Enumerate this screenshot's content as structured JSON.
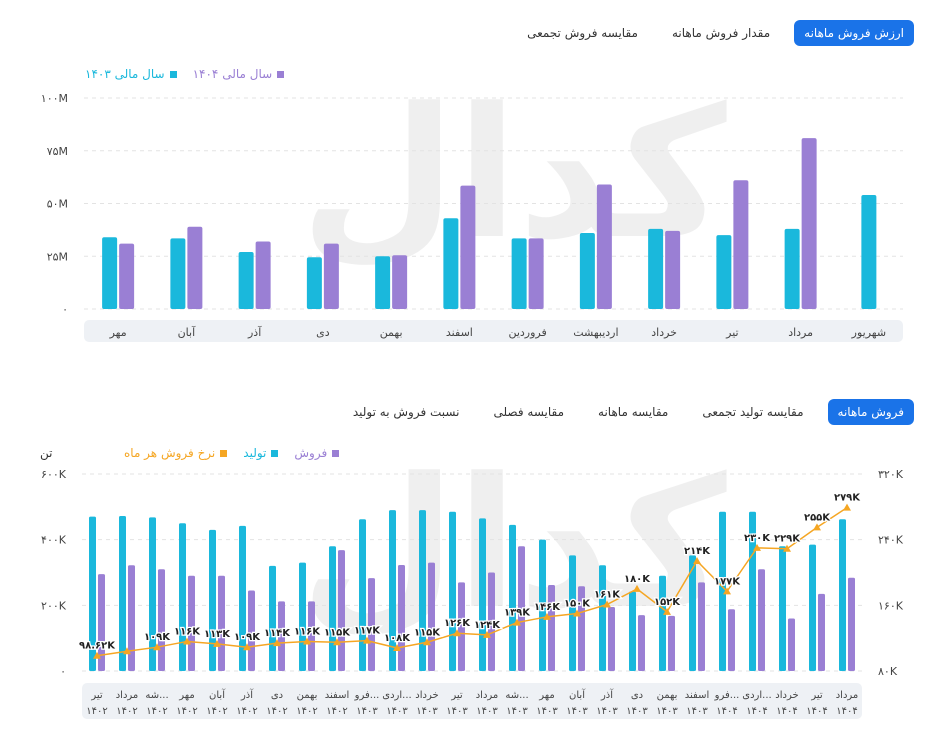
{
  "top_tabs": [
    {
      "label": "ارزش فروش ماهانه",
      "active": true
    },
    {
      "label": "مقدار فروش ماهانه",
      "active": false
    },
    {
      "label": "مقایسه فروش تجمعی",
      "active": false
    }
  ],
  "bottom_tabs": [
    {
      "label": "فروش ماهانه",
      "active": true
    },
    {
      "label": "مقایسه تولید تجمعی",
      "active": false
    },
    {
      "label": "مقایسه ماهانه",
      "active": false
    },
    {
      "label": "مقایسه فصلی",
      "active": false
    },
    {
      "label": "نسبت فروش به تولید",
      "active": false
    }
  ],
  "watermark": "کدال",
  "colors": {
    "teal": "#1ab8dc",
    "purple": "#9a7fd4",
    "orange": "#f5a623",
    "tab_active": "#1a73e8"
  },
  "chart_data": [
    {
      "type": "bar",
      "legend": [
        {
          "name": "سال مالی ۱۴۰۴",
          "color": "#9a7fd4"
        },
        {
          "name": "سال مالی ۱۴۰۳",
          "color": "#1ab8dc"
        }
      ],
      "ylim": [
        0,
        100
      ],
      "yticks": [
        "۰",
        "۲۵M",
        "۵۰M",
        "۷۵M",
        "۱۰۰M"
      ],
      "ytick_values": [
        0,
        25,
        50,
        75,
        100
      ],
      "categories": [
        "مهر",
        "آبان",
        "آذر",
        "دی",
        "بهمن",
        "اسفند",
        "فروردین",
        "اردیبهشت",
        "خرداد",
        "تیر",
        "مرداد",
        "شهریور"
      ],
      "series": [
        {
          "name": "سال مالی ۱۴۰۳",
          "values": [
            34,
            33.5,
            27,
            24.5,
            25,
            43,
            33.5,
            36,
            38,
            35,
            38,
            54
          ]
        },
        {
          "name": "سال مالی ۱۴۰۴",
          "values": [
            31,
            39,
            32,
            31,
            25.5,
            58.5,
            33.5,
            59,
            37,
            61,
            81,
            null
          ]
        }
      ]
    },
    {
      "type": "bar+line",
      "unit": "تن",
      "legend": [
        {
          "name": "فروش",
          "color": "#9a7fd4"
        },
        {
          "name": "تولید",
          "color": "#1ab8dc"
        },
        {
          "name": "نرخ فروش هر ماه",
          "color": "#f5a623"
        }
      ],
      "ylim_left": [
        0,
        600
      ],
      "yticks_left": [
        "۰",
        "۲۰۰K",
        "۴۰۰K",
        "۶۰۰K"
      ],
      "ytick_values_left": [
        0,
        200,
        400,
        600
      ],
      "ylim_right": [
        80,
        320
      ],
      "yticks_right": [
        "۸۰K",
        "۱۶۰K",
        "۲۴۰K",
        "۳۲۰K"
      ],
      "ytick_values_right": [
        80,
        160,
        240,
        320
      ],
      "categories": [
        {
          "month": "تیر",
          "year": "۱۴۰۲"
        },
        {
          "month": "مرداد",
          "year": "۱۴۰۲"
        },
        {
          "month": "شه...",
          "year": "۱۴۰۲"
        },
        {
          "month": "مهر",
          "year": "۱۴۰۲"
        },
        {
          "month": "آبان",
          "year": "۱۴۰۲"
        },
        {
          "month": "آذر",
          "year": "۱۴۰۲"
        },
        {
          "month": "دی",
          "year": "۱۴۰۲"
        },
        {
          "month": "بهمن",
          "year": "۱۴۰۲"
        },
        {
          "month": "اسفند",
          "year": "۱۴۰۲"
        },
        {
          "month": "فرو...",
          "year": "۱۴۰۳"
        },
        {
          "month": "اردی...",
          "year": "۱۴۰۳"
        },
        {
          "month": "خرداد",
          "year": "۱۴۰۳"
        },
        {
          "month": "تیر",
          "year": "۱۴۰۳"
        },
        {
          "month": "مرداد",
          "year": "۱۴۰۳"
        },
        {
          "month": "شه...",
          "year": "۱۴۰۳"
        },
        {
          "month": "مهر",
          "year": "۱۴۰۳"
        },
        {
          "month": "آبان",
          "year": "۱۴۰۳"
        },
        {
          "month": "آذر",
          "year": "۱۴۰۳"
        },
        {
          "month": "دی",
          "year": "۱۴۰۳"
        },
        {
          "month": "بهمن",
          "year": "۱۴۰۳"
        },
        {
          "month": "اسفند",
          "year": "۱۴۰۳"
        },
        {
          "month": "فرو...",
          "year": "۱۴۰۴"
        },
        {
          "month": "اردی...",
          "year": "۱۴۰۴"
        },
        {
          "month": "خرداد",
          "year": "۱۴۰۴"
        },
        {
          "month": "تیر",
          "year": "۱۴۰۴"
        },
        {
          "month": "مرداد",
          "year": "۱۴۰۴"
        }
      ],
      "series": [
        {
          "name": "تولید",
          "axis": "left",
          "type": "bar",
          "values": [
            470,
            472,
            468,
            450,
            430,
            442,
            320,
            330,
            380,
            462,
            490,
            490,
            485,
            465,
            445,
            400,
            352,
            322,
            242,
            290,
            352,
            485,
            485,
            380,
            385,
            462
          ]
        },
        {
          "name": "فروش",
          "axis": "left",
          "type": "bar",
          "values": [
            295,
            322,
            310,
            290,
            290,
            245,
            212,
            212,
            368,
            283,
            323,
            330,
            270,
            300,
            380,
            262,
            258,
            195,
            170,
            168,
            270,
            188,
            310,
            160,
            235,
            284
          ]
        },
        {
          "name": "نرخ فروش هر ماه",
          "axis": "right",
          "type": "line",
          "values": [
            98.62,
            104,
            109,
            116,
            113,
            109,
            114,
            116,
            115,
            117,
            108,
            115,
            126,
            124,
            139,
            146,
            150,
            161,
            180,
            152,
            214,
            177,
            230,
            229,
            255,
            279
          ],
          "labels": [
            "۹۸.۶۲K",
            "",
            "۱۰۹K",
            "۱۱۶K",
            "۱۱۳K",
            "۱۰۹K",
            "۱۱۴K",
            "۱۱۶K",
            "۱۱۵K",
            "۱۱۷K",
            "۱۰۸K",
            "۱۱۵K",
            "۱۲۶K",
            "۱۲۴K",
            "۱۳۹K",
            "۱۴۶K",
            "۱۵۰K",
            "۱۶۱K",
            "۱۸۰K",
            "۱۵۲K",
            "۲۱۴K",
            "۱۷۷K",
            "۲۳۰K",
            "۲۲۹K",
            "۲۵۵K",
            "۲۷۹K"
          ]
        }
      ]
    }
  ]
}
